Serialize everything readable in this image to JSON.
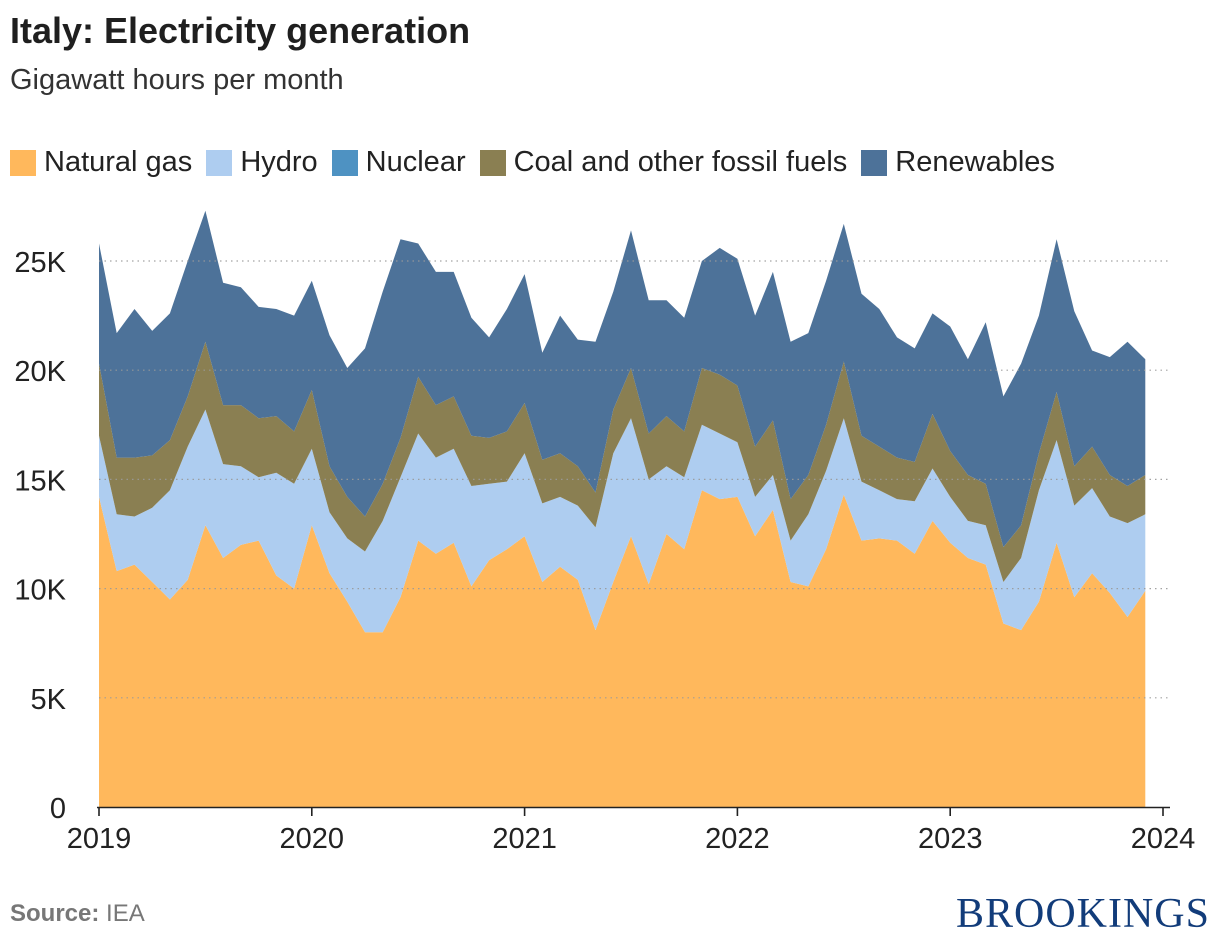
{
  "title": "Italy: Electricity generation",
  "subtitle": "Gigawatt hours per month",
  "source_label": "Source:",
  "source_value": "IEA",
  "logo": "BROOKINGS",
  "chart_data": {
    "type": "area",
    "stacked": true,
    "x_start": "2019-01",
    "x_tick_labels": [
      "2019",
      "2020",
      "2021",
      "2022",
      "2023",
      "2024"
    ],
    "y_tick_labels": [
      "0",
      "5K",
      "10K",
      "15K",
      "20K",
      "25K"
    ],
    "y_ticks": [
      0,
      5000,
      10000,
      15000,
      20000,
      25000
    ],
    "ylim": [
      0,
      25000
    ],
    "grid": "horizontal dotted",
    "legend_position": "top",
    "x": [
      "2019-01",
      "2019-02",
      "2019-03",
      "2019-04",
      "2019-05",
      "2019-06",
      "2019-07",
      "2019-08",
      "2019-09",
      "2019-10",
      "2019-11",
      "2019-12",
      "2020-01",
      "2020-02",
      "2020-03",
      "2020-04",
      "2020-05",
      "2020-06",
      "2020-07",
      "2020-08",
      "2020-09",
      "2020-10",
      "2020-11",
      "2020-12",
      "2021-01",
      "2021-02",
      "2021-03",
      "2021-04",
      "2021-05",
      "2021-06",
      "2021-07",
      "2021-08",
      "2021-09",
      "2021-10",
      "2021-11",
      "2021-12",
      "2022-01",
      "2022-02",
      "2022-03",
      "2022-04",
      "2022-05",
      "2022-06",
      "2022-07",
      "2022-08",
      "2022-09",
      "2022-10",
      "2022-11",
      "2022-12",
      "2023-01",
      "2023-02",
      "2023-03",
      "2023-04",
      "2023-05",
      "2023-06",
      "2023-07",
      "2023-08",
      "2023-09",
      "2023-10",
      "2023-11",
      "2023-12"
    ],
    "series": [
      {
        "name": "Natural gas",
        "color": "#ffb85c",
        "values": [
          14200,
          10800,
          11100,
          10300,
          9500,
          10400,
          12900,
          11400,
          12000,
          12200,
          10600,
          10000,
          12900,
          10700,
          9400,
          8000,
          8000,
          9600,
          12200,
          11600,
          12100,
          10100,
          11300,
          11800,
          12400,
          10300,
          11000,
          10400,
          8100,
          10300,
          12400,
          10200,
          12500,
          11800,
          14500,
          14100,
          14200,
          12400,
          13600,
          10300,
          10100,
          11800,
          14300,
          12200,
          12300,
          12200,
          11600,
          13100,
          12100,
          11400,
          11100,
          8400,
          8100,
          9400,
          12100,
          9600,
          10700,
          9800,
          8700,
          9900
        ]
      },
      {
        "name": "Hydro",
        "color": "#aecdf0",
        "values": [
          2800,
          2600,
          2200,
          3400,
          5000,
          6100,
          5300,
          4300,
          3600,
          2900,
          4700,
          4800,
          3500,
          2800,
          2900,
          3700,
          5100,
          5500,
          4900,
          4400,
          4300,
          4600,
          3500,
          3100,
          3800,
          3600,
          3200,
          3400,
          4700,
          5900,
          5400,
          4800,
          3100,
          3300,
          3000,
          3000,
          2500,
          1800,
          1600,
          1900,
          3300,
          3600,
          3500,
          2700,
          2200,
          1900,
          2400,
          2400,
          2100,
          1700,
          1800,
          1900,
          3300,
          5100,
          4700,
          4200,
          3900,
          3500,
          4300,
          3500
        ]
      },
      {
        "name": "Nuclear",
        "color": "#4e92c2",
        "values": [
          0,
          0,
          0,
          0,
          0,
          0,
          0,
          0,
          0,
          0,
          0,
          0,
          0,
          0,
          0,
          0,
          0,
          0,
          0,
          0,
          0,
          0,
          0,
          0,
          0,
          0,
          0,
          0,
          0,
          0,
          0,
          0,
          0,
          0,
          0,
          0,
          0,
          0,
          0,
          0,
          0,
          0,
          0,
          0,
          0,
          0,
          0,
          0,
          0,
          0,
          0,
          0,
          0,
          0,
          0,
          0,
          0,
          0,
          0,
          0
        ]
      },
      {
        "name": "Coal and other fossil fuels",
        "color": "#8a7f52",
        "values": [
          3300,
          2600,
          2700,
          2400,
          2300,
          2300,
          3100,
          2700,
          2800,
          2700,
          2600,
          2400,
          2700,
          2100,
          1900,
          1600,
          1700,
          1800,
          2600,
          2400,
          2400,
          2300,
          2100,
          2300,
          2300,
          2000,
          2000,
          1800,
          1600,
          2000,
          2300,
          2100,
          2300,
          2100,
          2600,
          2700,
          2600,
          2300,
          2500,
          1900,
          1800,
          2100,
          2600,
          2100,
          2000,
          1900,
          1800,
          2500,
          2100,
          2100,
          1900,
          1600,
          1500,
          1700,
          2200,
          1800,
          1900,
          1900,
          1700,
          1800
        ]
      },
      {
        "name": "Renewables",
        "color": "#4d7299",
        "values": [
          5500,
          5700,
          6800,
          5700,
          5800,
          6200,
          6000,
          5600,
          5400,
          5100,
          4900,
          5300,
          5000,
          6000,
          5900,
          7700,
          8800,
          9100,
          6100,
          6100,
          5700,
          5400,
          4600,
          5600,
          5900,
          4900,
          6300,
          5800,
          6900,
          5400,
          6300,
          6100,
          5300,
          5200,
          4900,
          5800,
          5800,
          6000,
          6800,
          7200,
          6500,
          6600,
          6300,
          6500,
          6300,
          5500,
          5200,
          4600,
          5700,
          5300,
          7400,
          6900,
          7400,
          6300,
          7000,
          7100,
          4400,
          5400,
          6600,
          5300
        ]
      }
    ]
  }
}
